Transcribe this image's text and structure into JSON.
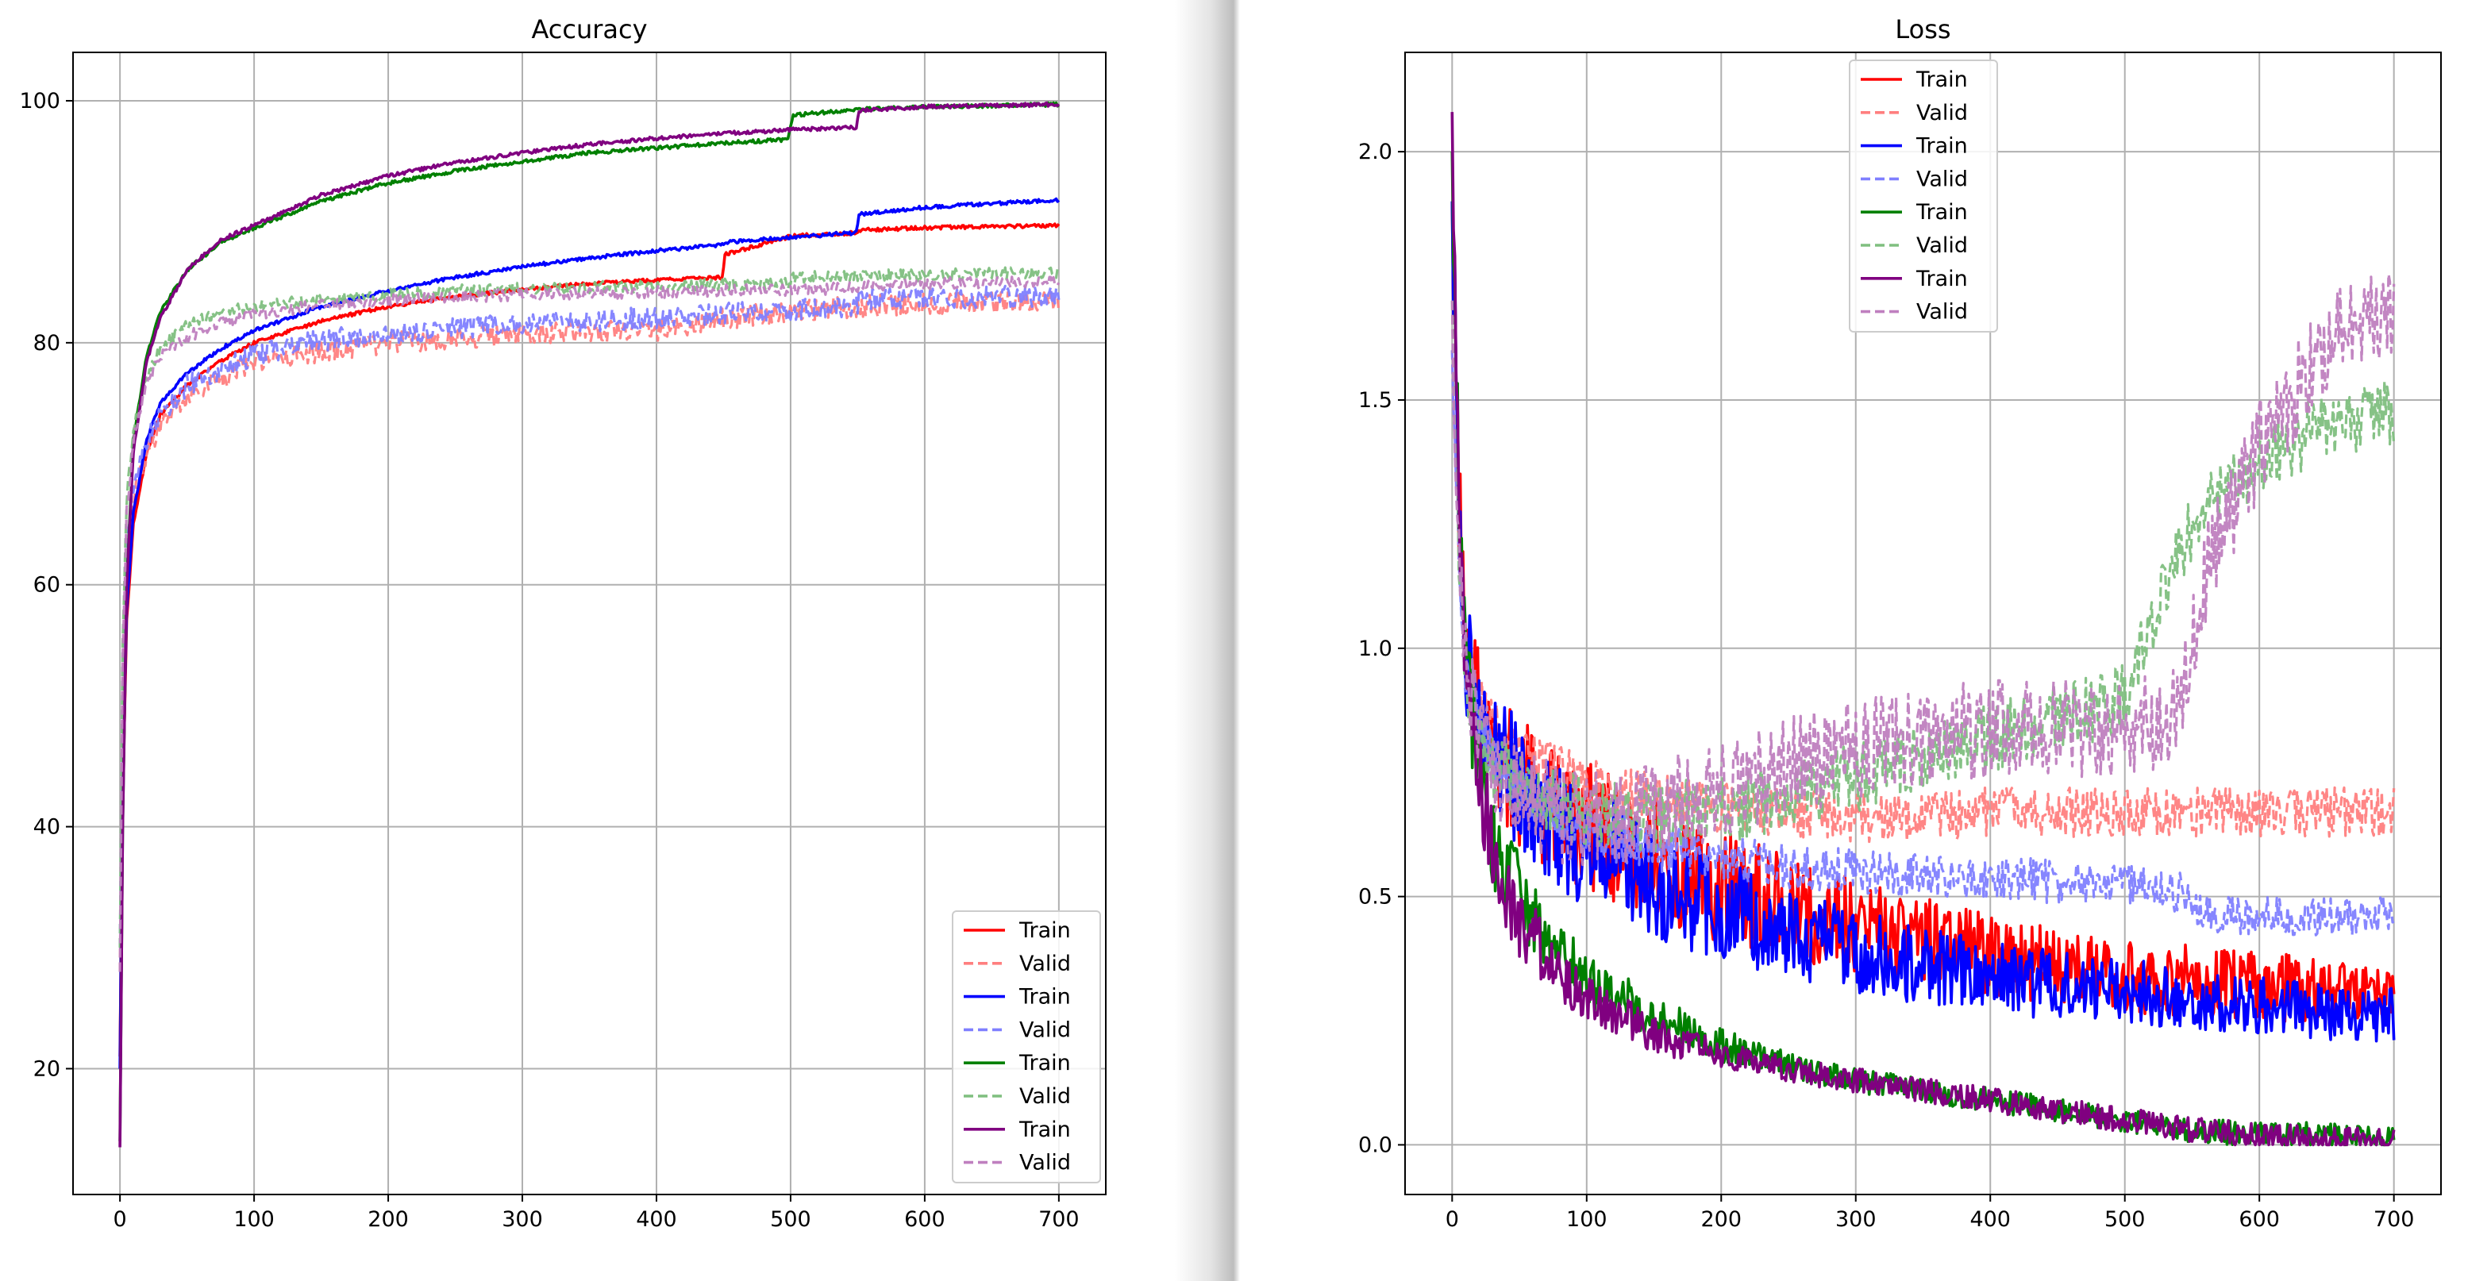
{
  "chart_data": [
    {
      "type": "line",
      "title": "Accuracy",
      "xlabel": "",
      "ylabel": "",
      "xlim": [
        -35,
        735
      ],
      "ylim": [
        9.6,
        104
      ],
      "xticks": [
        0,
        100,
        200,
        300,
        400,
        500,
        600,
        700
      ],
      "yticks": [
        20,
        40,
        60,
        80,
        100
      ],
      "grid": true,
      "legend_position": "lower right",
      "legend_entries": [
        "Train",
        "Valid",
        "Train",
        "Valid",
        "Train",
        "Valid",
        "Train",
        "Valid"
      ],
      "series": [
        {
          "name": "Train",
          "color": "#ff0000",
          "style": "solid",
          "noise": 0.15,
          "x": [
            0,
            2,
            5,
            10,
            20,
            30,
            50,
            75,
            100,
            150,
            200,
            250,
            300,
            350,
            400,
            449,
            451,
            500,
            549,
            551,
            600,
            650,
            700
          ],
          "y": [
            21,
            42,
            57,
            65,
            71,
            74,
            76.5,
            78.5,
            80,
            81.8,
            83,
            83.8,
            84.4,
            84.9,
            85.2,
            85.4,
            87.3,
            88.8,
            89.1,
            89.3,
            89.5,
            89.6,
            89.7
          ]
        },
        {
          "name": "Valid",
          "color": "#ff7f7f",
          "style": "dashed",
          "noise": 0.9,
          "x": [
            0,
            2,
            5,
            10,
            20,
            30,
            50,
            75,
            100,
            150,
            200,
            250,
            300,
            350,
            400,
            450,
            500,
            550,
            600,
            650,
            700
          ],
          "y": [
            28,
            50,
            62,
            67,
            71,
            73,
            75.5,
            77,
            78.3,
            79.3,
            80,
            80.4,
            80.7,
            80.9,
            81,
            82,
            82.6,
            83,
            83.2,
            83.3,
            83.4
          ]
        },
        {
          "name": "Train",
          "color": "#0000ff",
          "style": "solid",
          "noise": 0.15,
          "x": [
            0,
            2,
            5,
            10,
            20,
            30,
            50,
            75,
            100,
            150,
            200,
            250,
            300,
            350,
            400,
            449,
            451,
            500,
            549,
            551,
            600,
            650,
            700
          ],
          "y": [
            20,
            43,
            58,
            66,
            72,
            75,
            77.5,
            79.5,
            81,
            83,
            84.3,
            85.4,
            86.3,
            87,
            87.6,
            88.1,
            88.3,
            88.7,
            89.1,
            90.6,
            91.2,
            91.5,
            91.8
          ]
        },
        {
          "name": "Valid",
          "color": "#7f7fff",
          "style": "dashed",
          "noise": 0.9,
          "x": [
            0,
            2,
            5,
            10,
            20,
            30,
            50,
            75,
            100,
            150,
            200,
            250,
            300,
            350,
            400,
            450,
            500,
            549,
            551,
            600,
            650,
            700
          ],
          "y": [
            30,
            52,
            63,
            68,
            72,
            74,
            76.5,
            77.8,
            79,
            80.2,
            80.8,
            81.2,
            81.5,
            81.8,
            82.1,
            82.4,
            82.7,
            83,
            83.6,
            83.7,
            83.8,
            83.9
          ]
        },
        {
          "name": "Train",
          "color": "#008000",
          "style": "solid",
          "noise": 0.15,
          "x": [
            0,
            2,
            5,
            10,
            20,
            30,
            50,
            75,
            100,
            150,
            200,
            250,
            300,
            350,
            400,
            450,
            498,
            502,
            550,
            600,
            650,
            700
          ],
          "y": [
            14,
            40,
            60,
            72,
            79,
            82.5,
            86,
            88.3,
            89.5,
            91.7,
            93.2,
            94.2,
            95,
            95.7,
            96.1,
            96.5,
            96.8,
            98.8,
            99.3,
            99.5,
            99.6,
            99.7
          ]
        },
        {
          "name": "Valid",
          "color": "#7fbf7f",
          "style": "dashed",
          "noise": 0.5,
          "x": [
            0,
            2,
            5,
            10,
            20,
            30,
            50,
            75,
            100,
            150,
            200,
            250,
            300,
            350,
            400,
            450,
            498,
            502,
            550,
            600,
            650,
            700
          ],
          "y": [
            30,
            55,
            67,
            73,
            77,
            79.5,
            81.5,
            82.5,
            83,
            83.6,
            84,
            84.3,
            84.5,
            84.6,
            84.7,
            84.8,
            84.9,
            85.4,
            85.5,
            85.6,
            85.7,
            85.8
          ]
        },
        {
          "name": "Train",
          "color": "#800080",
          "style": "solid",
          "noise": 0.15,
          "x": [
            0,
            2,
            5,
            10,
            20,
            30,
            50,
            75,
            100,
            150,
            200,
            250,
            300,
            350,
            400,
            450,
            500,
            549,
            551,
            600,
            650,
            700
          ],
          "y": [
            13.5,
            40,
            60,
            71,
            78.5,
            82,
            86,
            88.5,
            89.7,
            92.2,
            93.8,
            94.9,
            95.7,
            96.4,
            96.9,
            97.3,
            97.6,
            97.8,
            99.2,
            99.5,
            99.6,
            99.7
          ]
        },
        {
          "name": "Valid",
          "color": "#bf7fbf",
          "style": "dashed",
          "noise": 0.5,
          "x": [
            0,
            2,
            5,
            10,
            20,
            30,
            50,
            75,
            100,
            150,
            200,
            250,
            300,
            350,
            400,
            450,
            500,
            549,
            551,
            600,
            650,
            700
          ],
          "y": [
            28,
            54,
            66,
            72,
            76.5,
            79,
            80.5,
            81.6,
            82.4,
            83.1,
            83.5,
            83.8,
            84,
            84.1,
            84.2,
            84.3,
            84.4,
            84.5,
            84.8,
            84.9,
            85,
            85.1
          ]
        }
      ]
    },
    {
      "type": "line",
      "title": "Loss",
      "xlabel": "",
      "ylabel": "",
      "xlim": [
        -35,
        735
      ],
      "ylim": [
        -0.1,
        2.2
      ],
      "xticks": [
        0,
        100,
        200,
        300,
        400,
        500,
        600,
        700
      ],
      "yticks": [
        0.0,
        0.5,
        1.0,
        1.5,
        2.0
      ],
      "ytick_labels": [
        "0.0",
        "0.5",
        "1.0",
        "1.5",
        "2.0"
      ],
      "grid": true,
      "legend_position": "upper center",
      "legend_entries": [
        "Train",
        "Valid",
        "Train",
        "Valid",
        "Train",
        "Valid",
        "Train",
        "Valid"
      ],
      "series": [
        {
          "name": "Train",
          "color": "#ff0000",
          "style": "solid",
          "noise": 0.13,
          "x": [
            0,
            5,
            10,
            20,
            30,
            50,
            75,
            100,
            150,
            200,
            250,
            300,
            350,
            400,
            450,
            500,
            550,
            600,
            650,
            700
          ],
          "y": [
            1.9,
            1.3,
            1.0,
            0.88,
            0.8,
            0.73,
            0.68,
            0.64,
            0.58,
            0.52,
            0.48,
            0.44,
            0.41,
            0.38,
            0.36,
            0.34,
            0.33,
            0.32,
            0.31,
            0.3
          ]
        },
        {
          "name": "Valid",
          "color": "#ff7f7f",
          "style": "dashed",
          "noise": 0.05,
          "x": [
            0,
            5,
            10,
            20,
            30,
            50,
            75,
            100,
            150,
            200,
            250,
            300,
            350,
            400,
            450,
            500,
            550,
            600,
            650,
            700
          ],
          "y": [
            1.6,
            1.2,
            1.0,
            0.9,
            0.85,
            0.8,
            0.76,
            0.73,
            0.7,
            0.68,
            0.67,
            0.66,
            0.66,
            0.67,
            0.67,
            0.67,
            0.67,
            0.67,
            0.67,
            0.67
          ]
        },
        {
          "name": "Train",
          "color": "#0000ff",
          "style": "solid",
          "noise": 0.13,
          "x": [
            0,
            5,
            10,
            20,
            30,
            50,
            75,
            100,
            150,
            200,
            250,
            300,
            350,
            400,
            450,
            500,
            550,
            600,
            650,
            700
          ],
          "y": [
            1.9,
            1.3,
            1.0,
            0.88,
            0.8,
            0.72,
            0.66,
            0.6,
            0.53,
            0.47,
            0.43,
            0.39,
            0.36,
            0.34,
            0.32,
            0.31,
            0.29,
            0.28,
            0.27,
            0.26
          ]
        },
        {
          "name": "Valid",
          "color": "#7f7fff",
          "style": "dashed",
          "noise": 0.05,
          "x": [
            0,
            5,
            10,
            20,
            30,
            50,
            75,
            100,
            150,
            200,
            250,
            300,
            350,
            400,
            450,
            500,
            549,
            551,
            600,
            650,
            700
          ],
          "y": [
            1.6,
            1.2,
            0.95,
            0.85,
            0.78,
            0.72,
            0.67,
            0.63,
            0.6,
            0.58,
            0.56,
            0.55,
            0.54,
            0.54,
            0.53,
            0.52,
            0.51,
            0.47,
            0.46,
            0.46,
            0.46
          ]
        },
        {
          "name": "Train",
          "color": "#008000",
          "style": "solid",
          "noise": 0.1,
          "x": [
            0,
            5,
            10,
            20,
            30,
            50,
            75,
            100,
            150,
            200,
            250,
            300,
            350,
            400,
            450,
            500,
            550,
            600,
            650,
            700
          ],
          "y": [
            2.0,
            1.3,
            0.95,
            0.75,
            0.62,
            0.5,
            0.4,
            0.33,
            0.26,
            0.2,
            0.16,
            0.13,
            0.11,
            0.09,
            0.07,
            0.05,
            0.03,
            0.02,
            0.02,
            0.01
          ]
        },
        {
          "name": "Valid",
          "color": "#7fbf7f",
          "style": "dashed",
          "noise": 0.07,
          "x": [
            0,
            5,
            10,
            20,
            30,
            50,
            75,
            100,
            150,
            200,
            250,
            300,
            350,
            400,
            450,
            500,
            520,
            550,
            600,
            650,
            700
          ],
          "y": [
            1.7,
            1.2,
            0.95,
            0.82,
            0.76,
            0.72,
            0.69,
            0.67,
            0.66,
            0.67,
            0.7,
            0.74,
            0.78,
            0.82,
            0.86,
            0.9,
            1.05,
            1.25,
            1.38,
            1.45,
            1.48
          ]
        },
        {
          "name": "Train",
          "color": "#800080",
          "style": "solid",
          "noise": 0.1,
          "x": [
            0,
            5,
            10,
            20,
            30,
            50,
            75,
            100,
            150,
            200,
            250,
            300,
            350,
            400,
            450,
            500,
            550,
            600,
            650,
            700
          ],
          "y": [
            2.08,
            1.3,
            0.95,
            0.72,
            0.6,
            0.45,
            0.36,
            0.3,
            0.22,
            0.18,
            0.15,
            0.13,
            0.11,
            0.09,
            0.07,
            0.05,
            0.03,
            0.02,
            0.01,
            0.01
          ]
        },
        {
          "name": "Valid",
          "color": "#bf7fbf",
          "style": "dashed",
          "noise": 0.1,
          "x": [
            0,
            5,
            10,
            20,
            30,
            50,
            75,
            100,
            150,
            200,
            250,
            300,
            350,
            400,
            450,
            500,
            540,
            560,
            600,
            650,
            700
          ],
          "y": [
            1.7,
            1.2,
            0.95,
            0.82,
            0.76,
            0.7,
            0.67,
            0.65,
            0.67,
            0.72,
            0.76,
            0.8,
            0.82,
            0.84,
            0.84,
            0.84,
            0.86,
            1.15,
            1.4,
            1.62,
            1.68
          ]
        }
      ]
    }
  ]
}
